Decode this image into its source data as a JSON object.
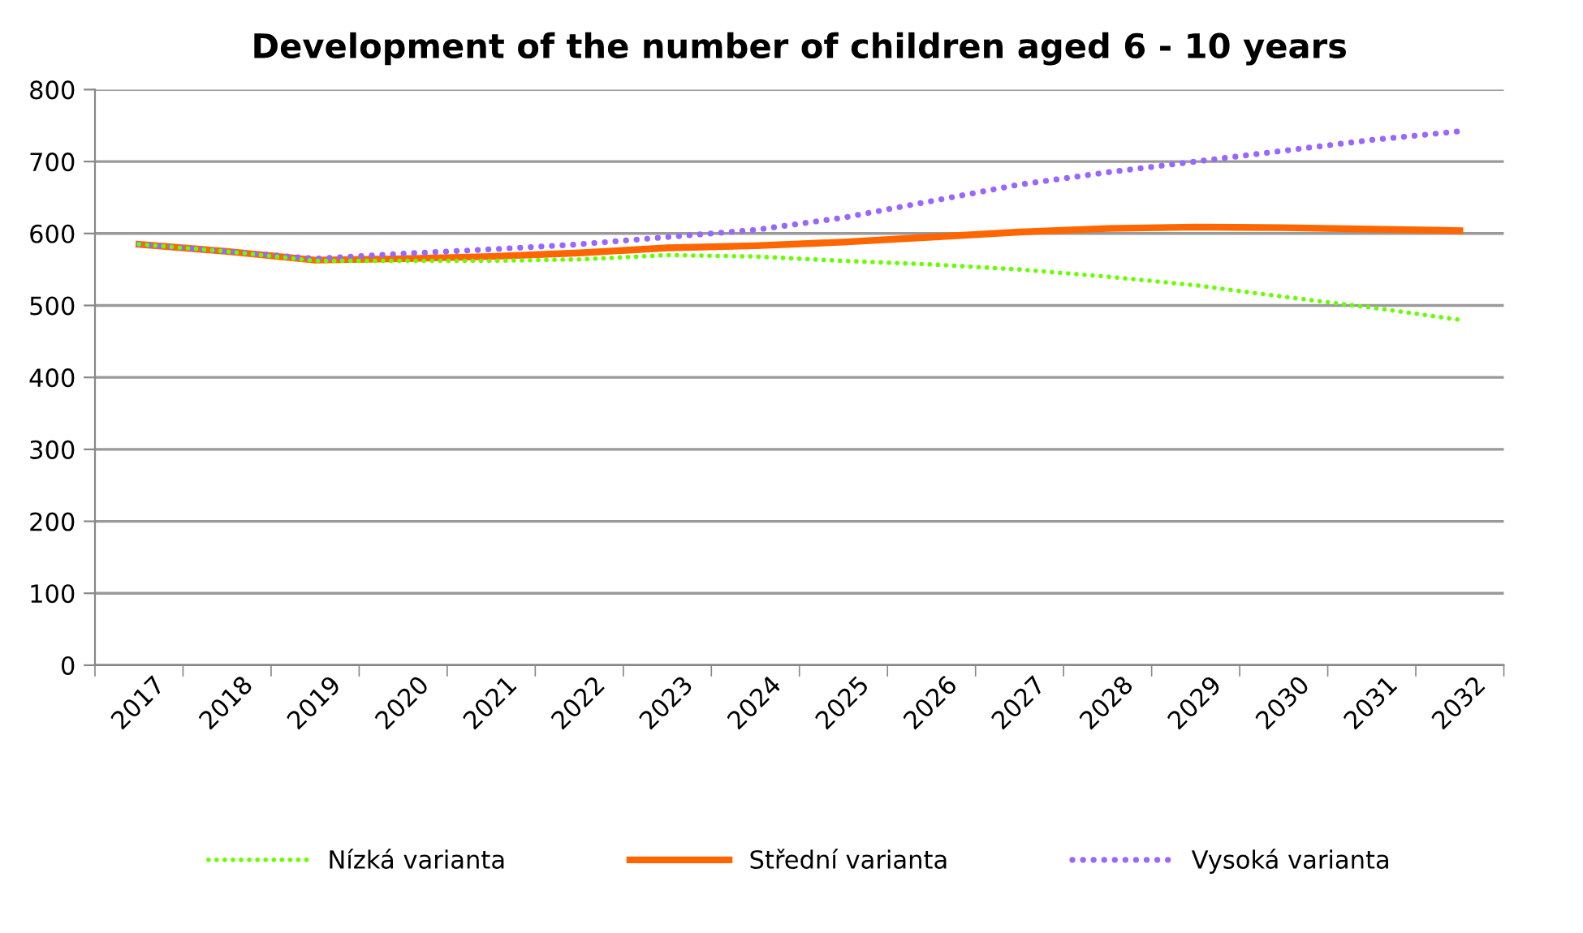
{
  "chart_data": {
    "type": "line",
    "title": "Development of the number of children aged 6 - 10 years",
    "categories": [
      "2017",
      "2018",
      "2019",
      "2020",
      "2021",
      "2022",
      "2023",
      "2024",
      "2025",
      "2026",
      "2027",
      "2028",
      "2029",
      "2030",
      "2031",
      "2032"
    ],
    "series": [
      {
        "name": "Nízká varianta",
        "color": "#66ff00",
        "line_style": "dotted",
        "values": [
          585,
          575,
          562,
          562,
          562,
          564,
          570,
          568,
          562,
          557,
          550,
          540,
          528,
          512,
          497,
          480
        ]
      },
      {
        "name": "Střední varianta",
        "color": "#ff6600",
        "line_style": "solid",
        "values": [
          585,
          575,
          563,
          565,
          568,
          573,
          580,
          583,
          588,
          595,
          602,
          607,
          609,
          608,
          606,
          604
        ]
      },
      {
        "name": "Vysoká varianta",
        "color": "#9966ff",
        "line_style": "dotted",
        "values": [
          585,
          575,
          565,
          572,
          578,
          585,
          595,
          605,
          622,
          645,
          668,
          685,
          700,
          715,
          730,
          742
        ]
      }
    ],
    "ylim": [
      0,
      800
    ],
    "yticks": [
      0,
      100,
      200,
      300,
      400,
      500,
      600,
      700,
      800
    ],
    "grid": "y",
    "legend": "bottom",
    "marker": "none"
  }
}
